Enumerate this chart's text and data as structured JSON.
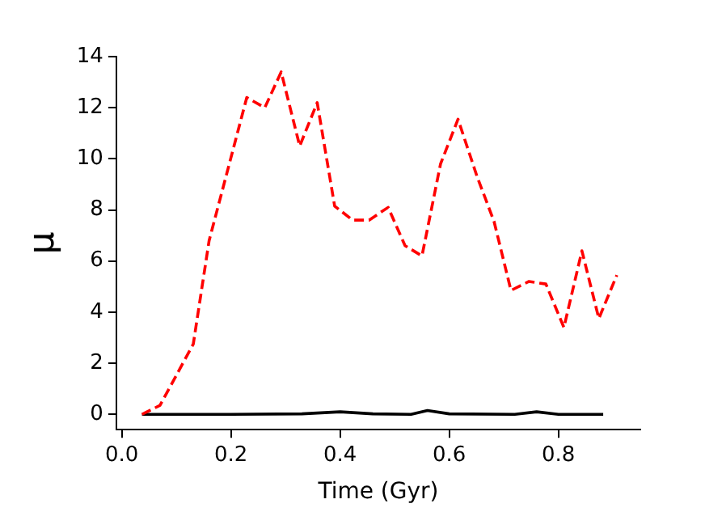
{
  "chart_data": {
    "type": "line",
    "xlabel": "Time (Gyr)",
    "ylabel": "μ",
    "xlim": [
      -0.01,
      0.95
    ],
    "xticks": [
      {
        "value": 0,
        "label": "0.0"
      },
      {
        "value": 0.2,
        "label": "0.2"
      },
      {
        "value": 0.4,
        "label": "0.4"
      },
      {
        "value": 0.6,
        "label": "0.6"
      },
      {
        "value": 0.8,
        "label": "0.8"
      }
    ],
    "ylim": [
      -0.6,
      14
    ],
    "yticks": [
      0,
      2,
      4,
      6,
      8,
      10,
      12,
      14
    ],
    "grid": false,
    "legend": false,
    "marker": "none",
    "series": [
      {
        "color": "#ff0000",
        "line_style": "dashed",
        "x": [
          0.037,
          0.07,
          0.131,
          0.16,
          0.229,
          0.262,
          0.292,
          0.326,
          0.358,
          0.39,
          0.423,
          0.453,
          0.488,
          0.519,
          0.55,
          0.584,
          0.616,
          0.651,
          0.682,
          0.713,
          0.746,
          0.777,
          0.81,
          0.843,
          0.874,
          0.907
        ],
        "values": [
          0,
          0.35,
          2.75,
          6.8,
          12.4,
          12,
          13.4,
          10.5,
          12.2,
          8.15,
          7.6,
          7.6,
          8.1,
          6.6,
          6.2,
          9.8,
          11.55,
          9.3,
          7.55,
          4.85,
          5.2,
          5.1,
          3.4,
          6.4,
          3.75,
          5.45
        ]
      },
      {
        "color": "#000000",
        "line_style": "solid",
        "x": [
          0.037,
          0.2,
          0.33,
          0.4,
          0.46,
          0.53,
          0.56,
          0.6,
          0.72,
          0.76,
          0.8,
          0.882
        ],
        "values": [
          0,
          0,
          0.02,
          0.1,
          0.02,
          0,
          0.15,
          0.02,
          0,
          0.1,
          0,
          0
        ]
      }
    ]
  }
}
